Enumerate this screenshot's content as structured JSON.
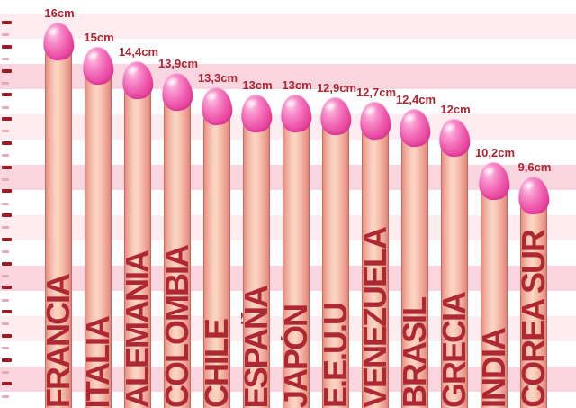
{
  "chart_data": {
    "type": "bar",
    "title": "",
    "orientation": "vertical",
    "unit": "cm",
    "categories": [
      "FRANCIA",
      "ITALIA",
      "ALEMANIA",
      "COLOMBIA",
      "CHILE",
      "ESPAÑA",
      "JAPÓN",
      "E.E.U.U",
      "VENEZUELA",
      "BRASIL",
      "GRECIA",
      "INDIA",
      "COREA SUR"
    ],
    "values": [
      16,
      15,
      14.4,
      13.9,
      13.3,
      13,
      13,
      12.9,
      12.7,
      12.4,
      12,
      10.2,
      9.6
    ],
    "value_labels": [
      "16cm",
      "15cm",
      "14,4cm",
      "13,9cm",
      "13,3cm",
      "13cm",
      "13cm",
      "12,9cm",
      "12,7cm",
      "12,4cm",
      "12cm",
      "10,2cm",
      "9,6cm"
    ],
    "ylim": [
      0,
      16
    ],
    "legend": "none",
    "gridlines": "horizontal pink stripes",
    "axis": {
      "side": "left",
      "max_cm": 16,
      "minor_step_cm": 0.5,
      "tick_labels_visible": false
    }
  },
  "colors": {
    "stripe_pink": "#f9d6df",
    "stripe_pale_pink": "#fdecf0",
    "background": "#ffffff",
    "major_tick": "#9e1b24",
    "minor_tick": "#e2a9b7",
    "value_label_red": "#ae2430",
    "country_label_red": "#ae2832",
    "bar_tip_pink": "#ee4fa8",
    "bar_shaft_flesh": "#f9cdba"
  }
}
